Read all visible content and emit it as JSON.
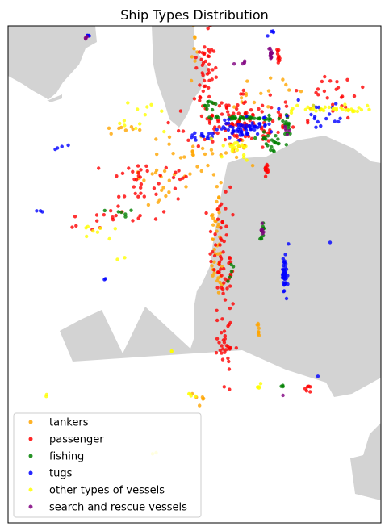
{
  "chart_data": {
    "type": "scatter",
    "title": "Ship Types Distribution",
    "xlabel": "",
    "ylabel": "",
    "axis_ticks": "none",
    "grid": false,
    "legend_position": "lower-left",
    "background_map": {
      "land_color": "#d3d3d3",
      "water_color": "#ffffff"
    },
    "series": [
      {
        "name": "tankers",
        "color": "#ffa500",
        "points": []
      },
      {
        "name": "passenger",
        "color": "#ff0000",
        "points": []
      },
      {
        "name": "fishing",
        "color": "#008000",
        "points": []
      },
      {
        "name": "tugs",
        "color": "#0000ff",
        "points": []
      },
      {
        "name": "other types of vessels",
        "color": "#ffff00",
        "points": []
      },
      {
        "name": "search and rescue vessels",
        "color": "#800080",
        "points": []
      }
    ]
  }
}
